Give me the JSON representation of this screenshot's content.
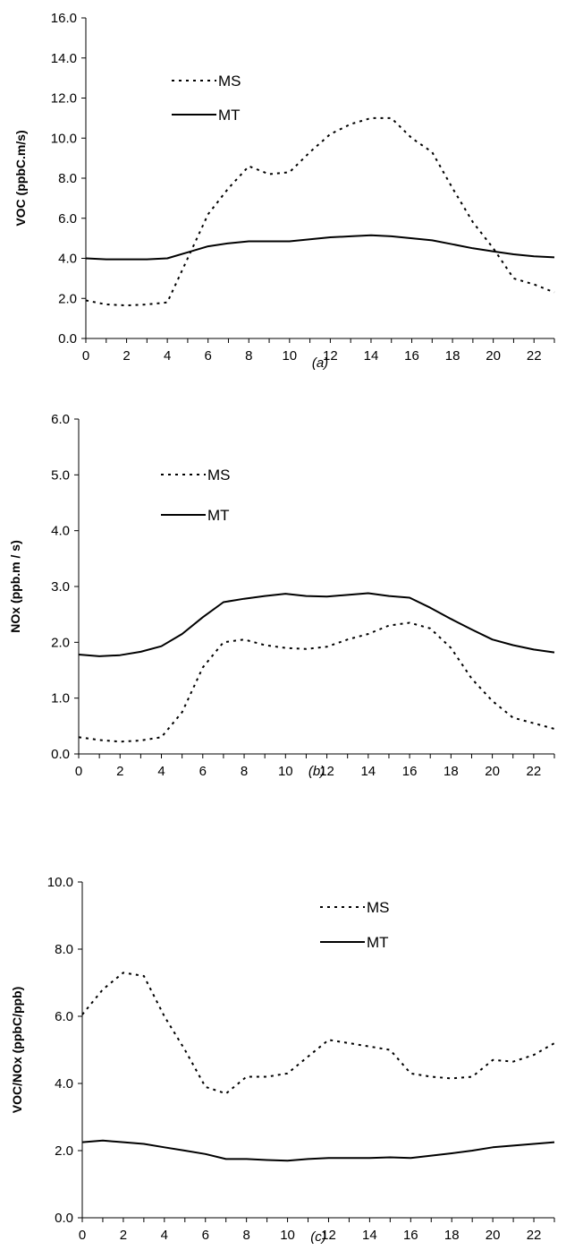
{
  "chart_data": [
    {
      "type": "line",
      "caption": "(a)",
      "ylabel": "VOC (ppbC.m/s)",
      "xlabel": "",
      "ylim": [
        0,
        16
      ],
      "ytick_step": 2,
      "ytick_decimals": 1,
      "xlim": [
        0,
        23
      ],
      "xticks": [
        0,
        2,
        4,
        6,
        8,
        10,
        12,
        14,
        16,
        18,
        20,
        22
      ],
      "x": [
        0,
        1,
        2,
        3,
        4,
        5,
        6,
        7,
        8,
        9,
        10,
        11,
        12,
        13,
        14,
        15,
        16,
        17,
        18,
        19,
        20,
        21,
        22,
        23
      ],
      "grid": false,
      "legend_position": "top-left",
      "series": [
        {
          "name": "MS",
          "style": "dashed",
          "color": "#000000",
          "values": [
            1.9,
            1.7,
            1.65,
            1.7,
            1.8,
            4.0,
            6.2,
            7.5,
            8.6,
            8.2,
            8.3,
            9.3,
            10.2,
            10.7,
            11.0,
            11.0,
            10.0,
            9.3,
            7.5,
            5.8,
            4.5,
            3.0,
            2.7,
            2.3
          ]
        },
        {
          "name": "MT",
          "style": "solid",
          "color": "#000000",
          "values": [
            4.0,
            3.95,
            3.95,
            3.95,
            4.0,
            4.3,
            4.6,
            4.75,
            4.85,
            4.85,
            4.85,
            4.95,
            5.05,
            5.1,
            5.15,
            5.1,
            5.0,
            4.9,
            4.7,
            4.5,
            4.35,
            4.2,
            4.1,
            4.05
          ]
        }
      ]
    },
    {
      "type": "line",
      "caption": "(b)",
      "ylabel": "NOx (ppb.m / s)",
      "xlabel": "",
      "ylim": [
        0,
        6
      ],
      "ytick_step": 1,
      "ytick_decimals": 1,
      "xlim": [
        0,
        23
      ],
      "xticks": [
        0,
        2,
        4,
        6,
        8,
        10,
        12,
        14,
        16,
        18,
        20,
        22
      ],
      "x": [
        0,
        1,
        2,
        3,
        4,
        5,
        6,
        7,
        8,
        9,
        10,
        11,
        12,
        13,
        14,
        15,
        16,
        17,
        18,
        19,
        20,
        21,
        22,
        23
      ],
      "grid": false,
      "legend_position": "top-left",
      "series": [
        {
          "name": "MS",
          "style": "dashed",
          "color": "#000000",
          "values": [
            0.3,
            0.25,
            0.22,
            0.24,
            0.3,
            0.75,
            1.55,
            2.0,
            2.05,
            1.95,
            1.9,
            1.88,
            1.92,
            2.05,
            2.15,
            2.3,
            2.35,
            2.25,
            1.9,
            1.35,
            0.95,
            0.65,
            0.55,
            0.45
          ]
        },
        {
          "name": "MT",
          "style": "solid",
          "color": "#000000",
          "values": [
            1.78,
            1.75,
            1.77,
            1.83,
            1.93,
            2.15,
            2.45,
            2.72,
            2.78,
            2.83,
            2.87,
            2.83,
            2.82,
            2.85,
            2.88,
            2.83,
            2.8,
            2.62,
            2.42,
            2.23,
            2.05,
            1.95,
            1.87,
            1.82
          ]
        }
      ]
    },
    {
      "type": "line",
      "caption": "(c)",
      "ylabel": "VOC/NOx (ppbC/ppb)",
      "xlabel": "",
      "ylim": [
        0,
        10
      ],
      "ytick_step": 2,
      "ytick_decimals": 1,
      "xlim": [
        0,
        23
      ],
      "xticks": [
        0,
        2,
        4,
        6,
        8,
        10,
        12,
        14,
        16,
        18,
        20,
        22
      ],
      "x": [
        0,
        1,
        2,
        3,
        4,
        5,
        6,
        7,
        8,
        9,
        10,
        11,
        12,
        13,
        14,
        15,
        16,
        17,
        18,
        19,
        20,
        21,
        22,
        23
      ],
      "grid": false,
      "legend_position": "top-right",
      "series": [
        {
          "name": "MS",
          "style": "dashed",
          "color": "#000000",
          "values": [
            6.05,
            6.8,
            7.3,
            7.2,
            6.0,
            5.0,
            3.9,
            3.7,
            4.2,
            4.2,
            4.3,
            4.8,
            5.3,
            5.2,
            5.1,
            5.0,
            4.3,
            4.2,
            4.15,
            4.2,
            4.7,
            4.65,
            4.85,
            5.2
          ]
        },
        {
          "name": "MT",
          "style": "solid",
          "color": "#000000",
          "values": [
            2.25,
            2.3,
            2.25,
            2.2,
            2.1,
            2.0,
            1.9,
            1.75,
            1.75,
            1.72,
            1.7,
            1.75,
            1.78,
            1.78,
            1.78,
            1.8,
            1.78,
            1.85,
            1.92,
            2.0,
            2.1,
            2.15,
            2.2,
            2.25
          ]
        }
      ]
    }
  ]
}
